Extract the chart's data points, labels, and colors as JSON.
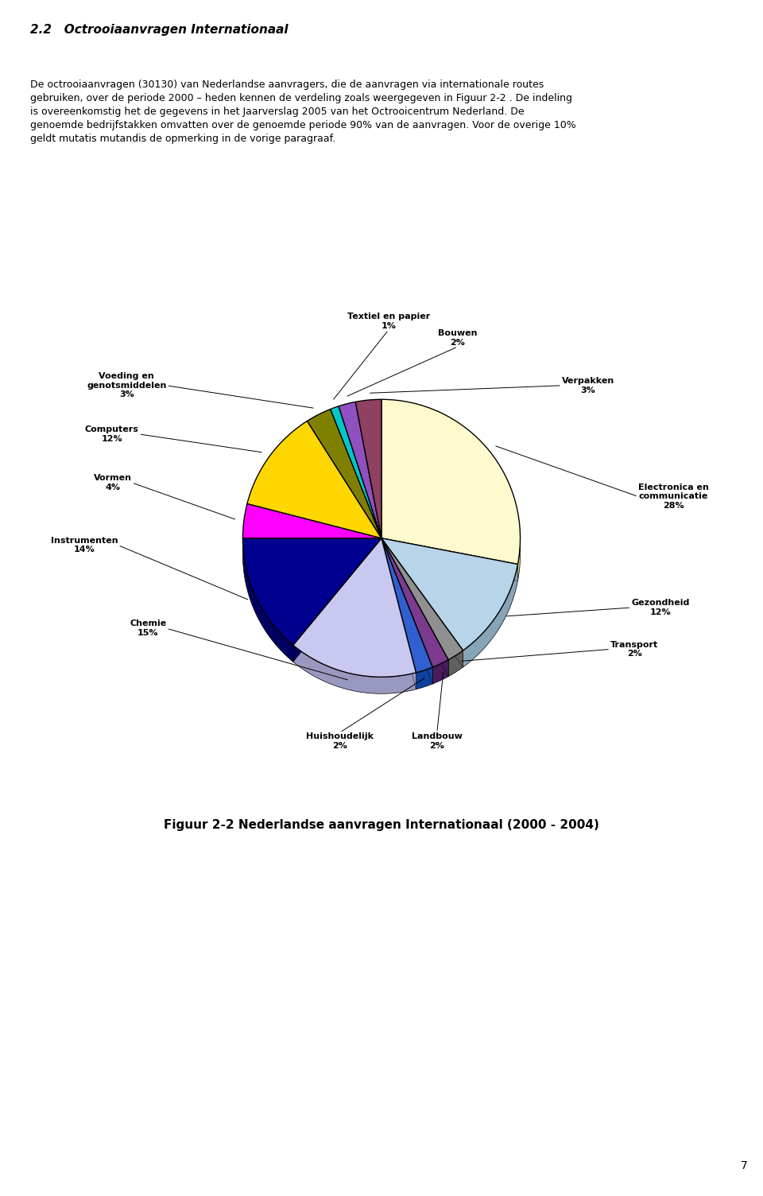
{
  "header_title": "2.2   Octrooiaanvragen Internationaal",
  "header_text": "De octrooiaanvragen (30130) van Nederlandse aanvragers, die de aanvragen via internationale routes\ngebruiken, over de periode 2000 – heden kennen de verdeling zoals weergegeven in Figuur 2-2 . De indeling\nis overeenkomstig het de gegevens in het Jaarverslag 2005 van het Octrooicentrum Nederland. De\ngenoemde bedrijfstakken omvatten over de genoemde periode 90% van de aanvragen. Voor de overige 10%\ngeldt mutatis mutandis de opmerking in de vorige paragraaf.",
  "caption": "Figuur 2-2 Nederlandse aanvragen Internationaal (2000 - 2004)",
  "page_number": "7",
  "slices": [
    {
      "label": "Electronica en\ncommunicatie",
      "pct": 28,
      "color": "#FFFACD",
      "side_color": "#D4D080"
    },
    {
      "label": "Gezondheid",
      "pct": 12,
      "color": "#B8D4E8",
      "side_color": "#88A4B8"
    },
    {
      "label": "Transport",
      "pct": 2,
      "color": "#909090",
      "side_color": "#606060"
    },
    {
      "label": "Landbouw",
      "pct": 2,
      "color": "#7B3B8E",
      "side_color": "#4B1B5E"
    },
    {
      "label": "Huishoudelijk",
      "pct": 2,
      "color": "#3060D0",
      "side_color": "#1040A0"
    },
    {
      "label": "Chemie",
      "pct": 15,
      "color": "#C8C8F0",
      "side_color": "#9898C0"
    },
    {
      "label": "Instrumenten",
      "pct": 14,
      "color": "#000090",
      "side_color": "#000060"
    },
    {
      "label": "Vormen",
      "pct": 4,
      "color": "#FF00FF",
      "side_color": "#C000C0"
    },
    {
      "label": "Computers",
      "pct": 12,
      "color": "#FFD700",
      "side_color": "#C0A000"
    },
    {
      "label": "Voeding en\ngenotsmiddelen",
      "pct": 3,
      "color": "#808000",
      "side_color": "#505000"
    },
    {
      "label": "Textiel en papier",
      "pct": 1,
      "color": "#00C8C8",
      "side_color": "#008888"
    },
    {
      "label": "Bouwen",
      "pct": 2,
      "color": "#9050C0",
      "side_color": "#602090"
    },
    {
      "label": "Verpakken",
      "pct": 3,
      "color": "#904060",
      "side_color": "#601030"
    }
  ],
  "background_color": "#FFFFFF"
}
